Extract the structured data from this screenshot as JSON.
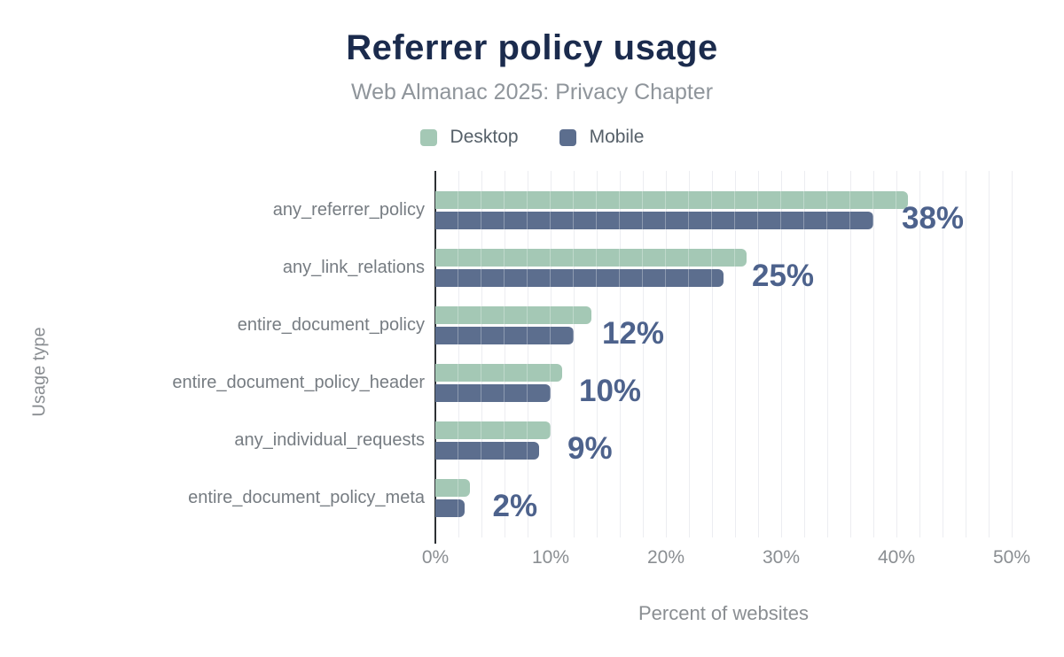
{
  "header": {
    "title": "Referrer policy usage",
    "subtitle": "Web Almanac 2025: Privacy Chapter"
  },
  "chart_data": {
    "type": "bar",
    "orientation": "horizontal",
    "title": "Referrer policy usage",
    "subtitle": "Web Almanac 2025: Privacy Chapter",
    "categories": [
      "any_referrer_policy",
      "any_link_relations",
      "entire_document_policy",
      "entire_document_policy_header",
      "any_individual_requests",
      "entire_document_policy_meta"
    ],
    "series": [
      {
        "name": "Desktop",
        "color": "#a4c8b5",
        "values": [
          41,
          27,
          13.5,
          11,
          10,
          3
        ]
      },
      {
        "name": "Mobile",
        "color": "#5c6e8e",
        "values": [
          38,
          25,
          12,
          10,
          9,
          2.5
        ]
      }
    ],
    "value_labels": [
      "38%",
      "25%",
      "12%",
      "10%",
      "9%",
      "2%"
    ],
    "xlabel": "Percent of websites",
    "ylabel": "Usage type",
    "xlim": [
      0,
      50
    ],
    "x_ticks": [
      "0%",
      "10%",
      "20%",
      "30%",
      "40%",
      "50%"
    ],
    "grid_step_percent": 2,
    "legend_position": "top",
    "grid": "vertical-minor"
  },
  "colors": {
    "title": "#1b2b4d",
    "subtitle": "#8f959b",
    "legend_text": "#566069",
    "desktop_bar": "#a4c8b5",
    "mobile_bar": "#5c6e8e",
    "value_label": "#4d628c",
    "category_text": "#767c82",
    "axis_text": "#8a8e92",
    "gridline": "#ecedf1",
    "axis_line": "#2d3135",
    "background": "#ffffff"
  }
}
